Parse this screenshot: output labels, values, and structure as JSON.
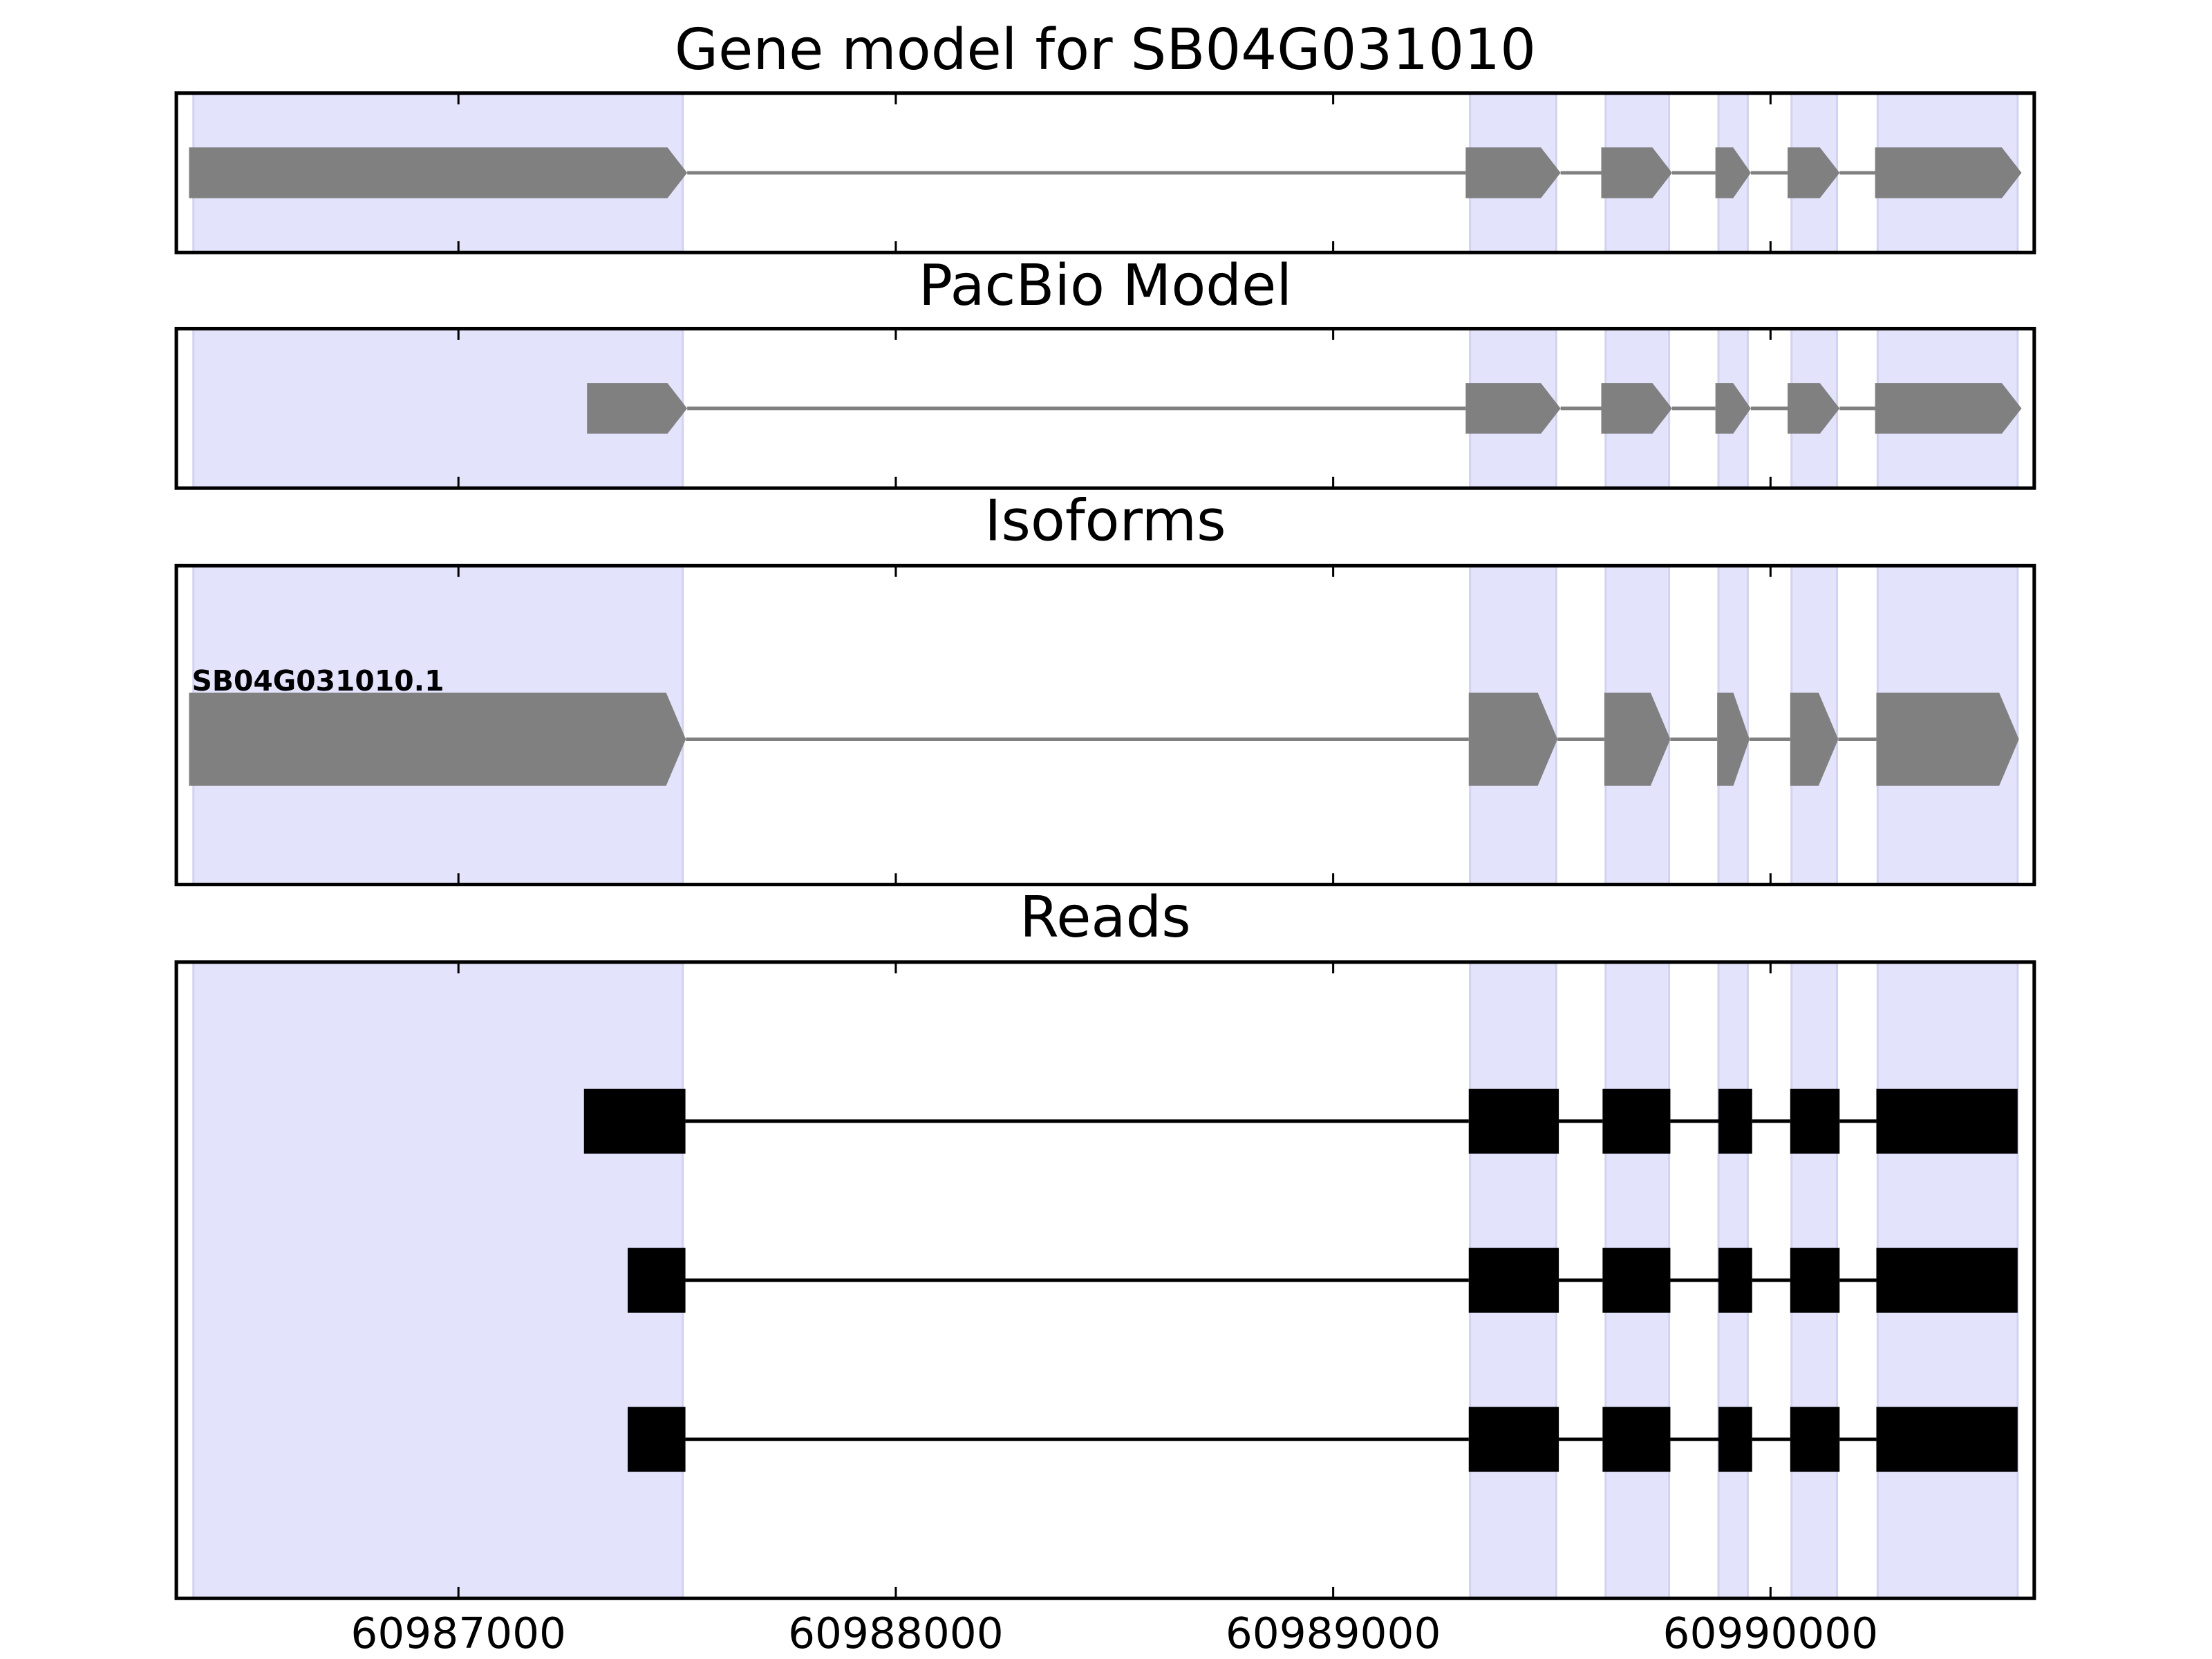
{
  "chart_data": [
    {
      "type": "gene",
      "title": "Gene model for SB04G031010",
      "color": "#808080",
      "xlim": [
        60986355,
        60990603
      ],
      "xticks": [
        60987000,
        60988000,
        60989000,
        60990000
      ],
      "highlight_color": "#e3e3fc",
      "highlights": [
        [
          60986394,
          60987513
        ],
        [
          60989313,
          60989510
        ],
        [
          60989623,
          60989768
        ],
        [
          60989881,
          60989948
        ],
        [
          60990048,
          60990152
        ],
        [
          60990245,
          60990565
        ]
      ],
      "features": [
        {
          "exons": [
            [
              60986384,
              60987523
            ],
            [
              60989303,
              60989520
            ],
            [
              60989613,
              60989775
            ],
            [
              60989874,
              60989955
            ],
            [
              60990039,
              60990158
            ],
            [
              60990239,
              60990574
            ]
          ]
        }
      ]
    },
    {
      "type": "gene",
      "title": "PacBio Model",
      "color": "#808080",
      "xlim": [
        60986355,
        60990603
      ],
      "xticks": [
        60987000,
        60988000,
        60989000,
        60990000
      ],
      "highlight_color": "#e3e3fc",
      "highlights": [
        [
          60986394,
          60987513
        ],
        [
          60989313,
          60989510
        ],
        [
          60989623,
          60989768
        ],
        [
          60989881,
          60989948
        ],
        [
          60990048,
          60990152
        ],
        [
          60990245,
          60990565
        ]
      ],
      "features": [
        {
          "exons": [
            [
              60987294,
              60987523
            ],
            [
              60989303,
              60989520
            ],
            [
              60989613,
              60989775
            ],
            [
              60989874,
              60989955
            ],
            [
              60990039,
              60990158
            ],
            [
              60990239,
              60990574
            ]
          ]
        }
      ]
    },
    {
      "type": "gene",
      "title": "Isoforms",
      "color": "#808080",
      "xlim": [
        60986355,
        60990603
      ],
      "xticks": [
        60987000,
        60988000,
        60989000,
        60990000
      ],
      "highlight_color": "#e3e3fc",
      "highlights": [
        [
          60986394,
          60987513
        ],
        [
          60989313,
          60989510
        ],
        [
          60989623,
          60989768
        ],
        [
          60989881,
          60989948
        ],
        [
          60990048,
          60990152
        ],
        [
          60990245,
          60990565
        ]
      ],
      "features": [
        {
          "name": "SB04G031010.1",
          "exons": [
            [
              60986384,
              60987520
            ],
            [
              60989310,
              60989513
            ],
            [
              60989620,
              60989771
            ],
            [
              60989878,
              60989952
            ],
            [
              60990045,
              60990155
            ],
            [
              60990242,
              60990568
            ]
          ]
        }
      ]
    },
    {
      "type": "reads",
      "title": "Reads",
      "color": "#000000",
      "xlim": [
        60986355,
        60990603
      ],
      "xticks": [
        60987000,
        60988000,
        60989000,
        60990000
      ],
      "highlight_color": "#e3e3fc",
      "highlights": [
        [
          60986394,
          60987513
        ],
        [
          60989313,
          60989510
        ],
        [
          60989623,
          60989768
        ],
        [
          60989881,
          60989948
        ],
        [
          60990048,
          60990152
        ],
        [
          60990245,
          60990565
        ]
      ],
      "features": [
        {
          "exons": [
            [
              60987287,
              60987519
            ],
            [
              60989310,
              60989516
            ],
            [
              60989616,
              60989771
            ],
            [
              60989881,
              60989958
            ],
            [
              60990045,
              60990158
            ],
            [
              60990242,
              60990565
            ]
          ]
        },
        {
          "exons": [
            [
              60987387,
              60987519
            ],
            [
              60989310,
              60989516
            ],
            [
              60989616,
              60989771
            ],
            [
              60989881,
              60989958
            ],
            [
              60990045,
              60990158
            ],
            [
              60990242,
              60990565
            ]
          ]
        },
        {
          "exons": [
            [
              60987387,
              60987519
            ],
            [
              60989310,
              60989516
            ],
            [
              60989616,
              60989771
            ],
            [
              60989881,
              60989958
            ],
            [
              60990045,
              60990158
            ],
            [
              60990242,
              60990565
            ]
          ]
        }
      ]
    }
  ]
}
